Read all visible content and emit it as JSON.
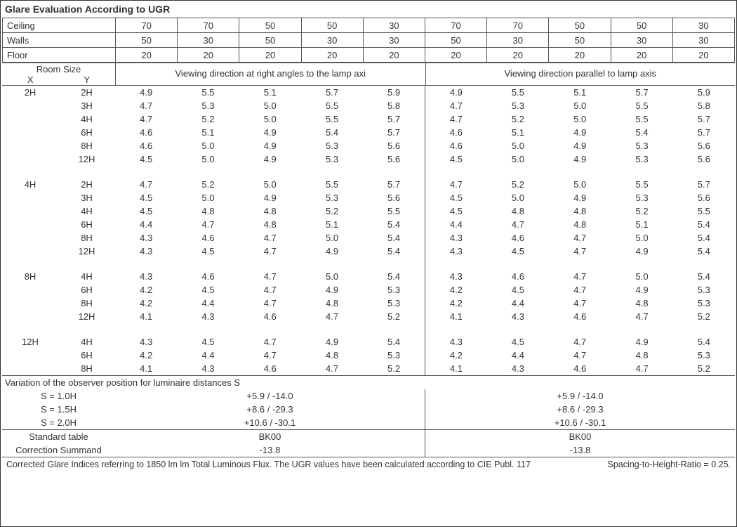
{
  "title": "Glare Evaluation According to UGR",
  "header": {
    "rows": [
      {
        "label": "Ceiling",
        "vals": [
          "70",
          "70",
          "50",
          "50",
          "30",
          "70",
          "70",
          "50",
          "50",
          "30"
        ]
      },
      {
        "label": "Walls",
        "vals": [
          "50",
          "30",
          "50",
          "30",
          "30",
          "50",
          "30",
          "50",
          "30",
          "30"
        ]
      },
      {
        "label": "Floor",
        "vals": [
          "20",
          "20",
          "20",
          "20",
          "20",
          "20",
          "20",
          "20",
          "20",
          "20"
        ]
      }
    ]
  },
  "room_label": "Room Size",
  "x_label": "X",
  "y_label": "Y",
  "dir1": "Viewing direction at right angles to the lamp axi",
  "dir2": "Viewing direction parallel to lamp axis",
  "groups": [
    {
      "x": "2H",
      "rows": [
        {
          "y": "2H",
          "v": [
            "4.9",
            "5.5",
            "5.1",
            "5.7",
            "5.9",
            "4.9",
            "5.5",
            "5.1",
            "5.7",
            "5.9"
          ]
        },
        {
          "y": "3H",
          "v": [
            "4.7",
            "5.3",
            "5.0",
            "5.5",
            "5.8",
            "4.7",
            "5.3",
            "5.0",
            "5.5",
            "5.8"
          ]
        },
        {
          "y": "4H",
          "v": [
            "4.7",
            "5.2",
            "5.0",
            "5.5",
            "5.7",
            "4.7",
            "5.2",
            "5.0",
            "5.5",
            "5.7"
          ]
        },
        {
          "y": "6H",
          "v": [
            "4.6",
            "5.1",
            "4.9",
            "5.4",
            "5.7",
            "4.6",
            "5.1",
            "4.9",
            "5.4",
            "5.7"
          ]
        },
        {
          "y": "8H",
          "v": [
            "4.6",
            "5.0",
            "4.9",
            "5.3",
            "5.6",
            "4.6",
            "5.0",
            "4.9",
            "5.3",
            "5.6"
          ]
        },
        {
          "y": "12H",
          "v": [
            "4.5",
            "5.0",
            "4.9",
            "5.3",
            "5.6",
            "4.5",
            "5.0",
            "4.9",
            "5.3",
            "5.6"
          ]
        }
      ]
    },
    {
      "x": "4H",
      "rows": [
        {
          "y": "2H",
          "v": [
            "4.7",
            "5.2",
            "5.0",
            "5.5",
            "5.7",
            "4.7",
            "5.2",
            "5.0",
            "5.5",
            "5.7"
          ]
        },
        {
          "y": "3H",
          "v": [
            "4.5",
            "5.0",
            "4.9",
            "5.3",
            "5.6",
            "4.5",
            "5.0",
            "4.9",
            "5.3",
            "5.6"
          ]
        },
        {
          "y": "4H",
          "v": [
            "4.5",
            "4.8",
            "4.8",
            "5.2",
            "5.5",
            "4.5",
            "4.8",
            "4.8",
            "5.2",
            "5.5"
          ]
        },
        {
          "y": "6H",
          "v": [
            "4.4",
            "4.7",
            "4.8",
            "5.1",
            "5.4",
            "4.4",
            "4.7",
            "4.8",
            "5.1",
            "5.4"
          ]
        },
        {
          "y": "8H",
          "v": [
            "4.3",
            "4.6",
            "4.7",
            "5.0",
            "5.4",
            "4.3",
            "4.6",
            "4.7",
            "5.0",
            "5.4"
          ]
        },
        {
          "y": "12H",
          "v": [
            "4.3",
            "4.5",
            "4.7",
            "4.9",
            "5.4",
            "4.3",
            "4.5",
            "4.7",
            "4.9",
            "5.4"
          ]
        }
      ]
    },
    {
      "x": "8H",
      "rows": [
        {
          "y": "4H",
          "v": [
            "4.3",
            "4.6",
            "4.7",
            "5.0",
            "5.4",
            "4.3",
            "4.6",
            "4.7",
            "5.0",
            "5.4"
          ]
        },
        {
          "y": "6H",
          "v": [
            "4.2",
            "4.5",
            "4.7",
            "4.9",
            "5.3",
            "4.2",
            "4.5",
            "4.7",
            "4.9",
            "5.3"
          ]
        },
        {
          "y": "8H",
          "v": [
            "4.2",
            "4.4",
            "4.7",
            "4.8",
            "5.3",
            "4.2",
            "4.4",
            "4.7",
            "4.8",
            "5.3"
          ]
        },
        {
          "y": "12H",
          "v": [
            "4.1",
            "4.3",
            "4.6",
            "4.7",
            "5.2",
            "4.1",
            "4.3",
            "4.6",
            "4.7",
            "5.2"
          ]
        }
      ]
    },
    {
      "x": "12H",
      "rows": [
        {
          "y": "4H",
          "v": [
            "4.3",
            "4.5",
            "4.7",
            "4.9",
            "5.4",
            "4.3",
            "4.5",
            "4.7",
            "4.9",
            "5.4"
          ]
        },
        {
          "y": "6H",
          "v": [
            "4.2",
            "4.4",
            "4.7",
            "4.8",
            "5.3",
            "4.2",
            "4.4",
            "4.7",
            "4.8",
            "5.3"
          ]
        },
        {
          "y": "8H",
          "v": [
            "4.1",
            "4.3",
            "4.6",
            "4.7",
            "5.2",
            "4.1",
            "4.3",
            "4.6",
            "4.7",
            "5.2"
          ]
        }
      ]
    }
  ],
  "obs_title": "Variation of the observer position for luminaire distances S",
  "obs": [
    {
      "lab": "S = 1.0H",
      "a": "+5.9 / -14.0",
      "b": "+5.9 / -14.0"
    },
    {
      "lab": "S = 1.5H",
      "a": "+8.6 / -29.3",
      "b": "+8.6 / -29.3"
    },
    {
      "lab": "S = 2.0H",
      "a": "+10.6 / -30.1",
      "b": "+10.6 / -30.1"
    }
  ],
  "std": {
    "lab1": "Standard table",
    "a1": "BK00",
    "b1": "BK00",
    "lab2": "Correction Summand",
    "a2": "-13.8",
    "b2": "-13.8"
  },
  "foot_left": "Corrected Glare Indices referring to 1850 lm lm Total Luminous Flux. The UGR values have been calculated according to CIE Publ. 117",
  "foot_right": "Spacing-to-Height-Ratio = 0.25."
}
